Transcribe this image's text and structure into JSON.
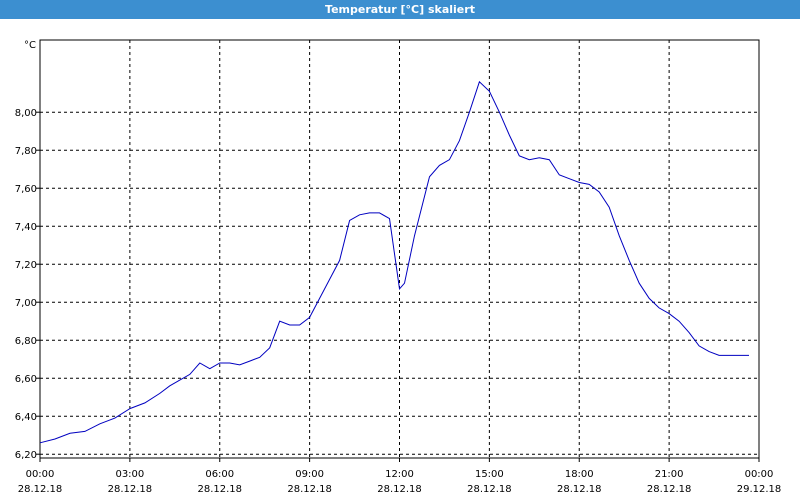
{
  "window": {
    "title": "Temperatur [°C] skaliert"
  },
  "colors": {
    "title_bar": "#3c8fd0",
    "series": "#0000c0",
    "grid": "#000000"
  },
  "chart_data": {
    "type": "line",
    "title": "Temperatur [°C] skaliert",
    "ylabel": "°C",
    "xlabel": "",
    "ylim": [
      6.18,
      8.38
    ],
    "xlim": [
      "28.12.18 00:00",
      "29.12.18 00:00"
    ],
    "grid": true,
    "legend": "none",
    "y_ticks": [
      "6,20",
      "6,40",
      "6,60",
      "6,80",
      "7,00",
      "7,20",
      "7,40",
      "7,60",
      "7,80",
      "8,00"
    ],
    "y_tick_values": [
      6.2,
      6.4,
      6.6,
      6.8,
      7.0,
      7.2,
      7.4,
      7.6,
      7.8,
      8.0
    ],
    "x_ticks": [
      {
        "time": "00:00",
        "date": "28.12.18"
      },
      {
        "time": "03:00",
        "date": "28.12.18"
      },
      {
        "time": "06:00",
        "date": "28.12.18"
      },
      {
        "time": "09:00",
        "date": "28.12.18"
      },
      {
        "time": "12:00",
        "date": "28.12.18"
      },
      {
        "time": "15:00",
        "date": "28.12.18"
      },
      {
        "time": "18:00",
        "date": "28.12.18"
      },
      {
        "time": "21:00",
        "date": "28.12.18"
      },
      {
        "time": "00:00",
        "date": "29.12.18"
      }
    ],
    "series": [
      {
        "x": [
          "28.12.18 00:00",
          "28.12.18 00:30",
          "28.12.18 01:00",
          "28.12.18 01:30",
          "28.12.18 02:00",
          "28.12.18 02:30",
          "28.12.18 03:00",
          "28.12.18 03:30",
          "28.12.18 04:00",
          "28.12.18 04:20",
          "28.12.18 04:40",
          "28.12.18 05:00",
          "28.12.18 05:20",
          "28.12.18 05:40",
          "28.12.18 06:00",
          "28.12.18 06:20",
          "28.12.18 06:40",
          "28.12.18 07:00",
          "28.12.18 07:20",
          "28.12.18 07:40",
          "28.12.18 08:00",
          "28.12.18 08:20",
          "28.12.18 08:40",
          "28.12.18 09:00",
          "28.12.18 09:20",
          "28.12.18 09:40",
          "28.12.18 10:00",
          "28.12.18 10:20",
          "28.12.18 10:40",
          "28.12.18 11:00",
          "28.12.18 11:20",
          "28.12.18 11:40",
          "28.12.18 12:00",
          "28.12.18 12:10",
          "28.12.18 12:30",
          "28.12.18 13:00",
          "28.12.18 13:20",
          "28.12.18 13:40",
          "28.12.18 14:00",
          "28.12.18 14:20",
          "28.12.18 14:40",
          "28.12.18 15:00",
          "28.12.18 15:20",
          "28.12.18 15:40",
          "28.12.18 16:00",
          "28.12.18 16:20",
          "28.12.18 16:40",
          "28.12.18 17:00",
          "28.12.18 17:20",
          "28.12.18 17:40",
          "28.12.18 18:00",
          "28.12.18 18:20",
          "28.12.18 18:40",
          "28.12.18 19:00",
          "28.12.18 19:20",
          "28.12.18 19:40",
          "28.12.18 20:00",
          "28.12.18 20:20",
          "28.12.18 20:40",
          "28.12.18 21:00",
          "28.12.18 21:20",
          "28.12.18 21:40",
          "28.12.18 22:00",
          "28.12.18 22:20",
          "28.12.18 22:40",
          "28.12.18 23:00",
          "28.12.18 23:20",
          "28.12.18 23:40"
        ],
        "y": [
          6.26,
          6.28,
          6.31,
          6.32,
          6.36,
          6.39,
          6.44,
          6.47,
          6.52,
          6.56,
          6.59,
          6.62,
          6.68,
          6.65,
          6.68,
          6.68,
          6.67,
          6.69,
          6.71,
          6.76,
          6.9,
          6.88,
          6.88,
          6.92,
          7.02,
          7.12,
          7.22,
          7.43,
          7.46,
          7.47,
          7.47,
          7.44,
          7.07,
          7.1,
          7.35,
          7.66,
          7.72,
          7.75,
          7.85,
          8.0,
          8.16,
          8.11,
          8.0,
          7.88,
          7.77,
          7.75,
          7.76,
          7.75,
          7.67,
          7.65,
          7.63,
          7.62,
          7.58,
          7.5,
          7.35,
          7.22,
          7.1,
          7.02,
          6.97,
          6.94,
          6.9,
          6.84,
          6.77,
          6.74,
          6.72,
          6.72,
          6.72,
          6.72
        ]
      }
    ]
  }
}
